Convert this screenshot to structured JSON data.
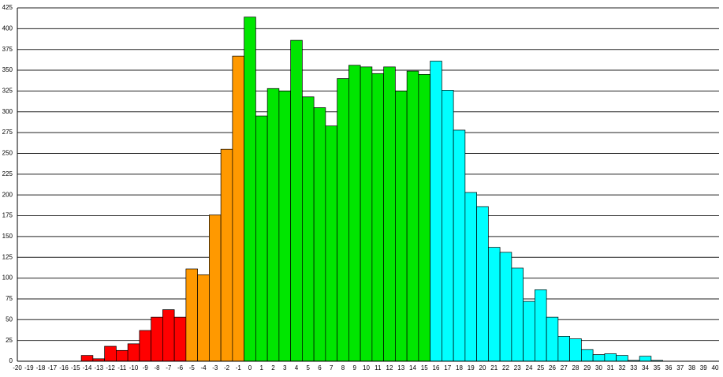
{
  "chart_data": {
    "type": "bar",
    "categories": [
      "-20",
      "-19",
      "-18",
      "-17",
      "-16",
      "-15",
      "-14",
      "-13",
      "-12",
      "-11",
      "-10",
      "-9",
      "-8",
      "-7",
      "-6",
      "-5",
      "-4",
      "-3",
      "-2",
      "-1",
      "0",
      "1",
      "2",
      "3",
      "4",
      "5",
      "6",
      "7",
      "8",
      "9",
      "10",
      "11",
      "12",
      "13",
      "14",
      "15",
      "16",
      "17",
      "18",
      "19",
      "20",
      "21",
      "22",
      "23",
      "24",
      "25",
      "26",
      "27",
      "28",
      "29",
      "30",
      "31",
      "32",
      "33",
      "34",
      "35",
      "36",
      "37",
      "38",
      "39",
      "40"
    ],
    "values": [
      0,
      0,
      0,
      0,
      0,
      0,
      7,
      3,
      18,
      13,
      21,
      37,
      53,
      62,
      53,
      111,
      104,
      176,
      255,
      367,
      414,
      295,
      328,
      325,
      386,
      318,
      305,
      283,
      340,
      356,
      354,
      346,
      354,
      325,
      349,
      345,
      361,
      326,
      278,
      203,
      186,
      137,
      131,
      112,
      72,
      86,
      53,
      30,
      27,
      14,
      8,
      9,
      7,
      1,
      6,
      1,
      0,
      0,
      0,
      0,
      0
    ],
    "colors": [
      "#ff0000",
      "#ff0000",
      "#ff0000",
      "#ff0000",
      "#ff0000",
      "#ff0000",
      "#ff0000",
      "#ff0000",
      "#ff0000",
      "#ff0000",
      "#ff0000",
      "#ff0000",
      "#ff0000",
      "#ff0000",
      "#ff0000",
      "#ff9900",
      "#ff9900",
      "#ff9900",
      "#ff9900",
      "#ff9900",
      "#00e600",
      "#00e600",
      "#00e600",
      "#00e600",
      "#00e600",
      "#00e600",
      "#00e600",
      "#00e600",
      "#00e600",
      "#00e600",
      "#00e600",
      "#00e600",
      "#00e600",
      "#00e600",
      "#00e600",
      "#00e600",
      "#00ffff",
      "#00ffff",
      "#00ffff",
      "#00ffff",
      "#00ffff",
      "#00ffff",
      "#00ffff",
      "#00ffff",
      "#00ffff",
      "#00ffff",
      "#00ffff",
      "#00ffff",
      "#00ffff",
      "#00ffff",
      "#00ffff",
      "#00ffff",
      "#00ffff",
      "#00ffff",
      "#00ffff",
      "#00ffff",
      "#00ffff",
      "#00ffff",
      "#00ffff",
      "#00ffff",
      "#00ffff"
    ],
    "ylim": [
      0,
      425
    ],
    "yticks": [
      0,
      25,
      50,
      75,
      100,
      125,
      150,
      175,
      200,
      225,
      250,
      275,
      300,
      325,
      350,
      375,
      400,
      425
    ],
    "grid": true
  }
}
